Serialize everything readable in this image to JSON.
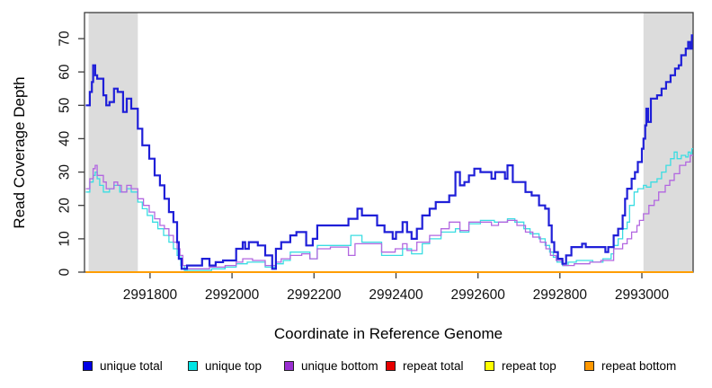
{
  "figure": {
    "background": "#ffffff",
    "band_color": "#dcdcdc",
    "axis_color": "#3d3d3d",
    "tick_label_color": "#111111"
  },
  "chart_data": {
    "type": "line",
    "subtype": "step",
    "title": "",
    "xlabel": "Coordinate in Reference Genome",
    "ylabel": "Read Coverage Depth",
    "x_range": [
      2991640,
      2993125
    ],
    "y_range": [
      0,
      77.8
    ],
    "x_ticks": [
      2991800,
      2992000,
      2992200,
      2992400,
      2992600,
      2992800,
      2993000
    ],
    "y_ticks": [
      0,
      10,
      20,
      30,
      40,
      50,
      60,
      70
    ],
    "grid": false,
    "legend_position": "bottom",
    "shaded_regions": [
      {
        "x0": 2991650,
        "x1": 2991770,
        "color": "#dcdcdc"
      },
      {
        "x0": 2993004,
        "x1": 2993125,
        "color": "#dcdcdc"
      }
    ],
    "draw_order": [
      3,
      4,
      5,
      1,
      2,
      0
    ],
    "series": [
      {
        "name": "unique total",
        "color": "#1f1fd8",
        "legend_color": "#0000e6",
        "width": 2.2,
        "points": [
          [
            2991643,
            50
          ],
          [
            2991653,
            54
          ],
          [
            2991658,
            57
          ],
          [
            2991661,
            62
          ],
          [
            2991666,
            59
          ],
          [
            2991671,
            58
          ],
          [
            2991686,
            53
          ],
          [
            2991693,
            50
          ],
          [
            2991701,
            51
          ],
          [
            2991712,
            55
          ],
          [
            2991721,
            54
          ],
          [
            2991734,
            48
          ],
          [
            2991743,
            52
          ],
          [
            2991754,
            49
          ],
          [
            2991770,
            43
          ],
          [
            2991781,
            38
          ],
          [
            2991798,
            34
          ],
          [
            2991811,
            29
          ],
          [
            2991824,
            26
          ],
          [
            2991835,
            22
          ],
          [
            2991846,
            18
          ],
          [
            2991857,
            15
          ],
          [
            2991866,
            9
          ],
          [
            2991870,
            4
          ],
          [
            2991877,
            1
          ],
          [
            2991890,
            2
          ],
          [
            2991927,
            4
          ],
          [
            2991945,
            2
          ],
          [
            2991960,
            3
          ],
          [
            2991978,
            3.5
          ],
          [
            2992010,
            7
          ],
          [
            2992026,
            9
          ],
          [
            2992032,
            7
          ],
          [
            2992041,
            9
          ],
          [
            2992063,
            8
          ],
          [
            2992081,
            5
          ],
          [
            2992098,
            1
          ],
          [
            2992107,
            7
          ],
          [
            2992120,
            9
          ],
          [
            2992142,
            11
          ],
          [
            2992157,
            12
          ],
          [
            2992181,
            8
          ],
          [
            2992197,
            10
          ],
          [
            2992208,
            14
          ],
          [
            2992284,
            16
          ],
          [
            2992306,
            19
          ],
          [
            2992317,
            17
          ],
          [
            2992354,
            14
          ],
          [
            2992372,
            12
          ],
          [
            2992392,
            10
          ],
          [
            2992400,
            12
          ],
          [
            2992416,
            15
          ],
          [
            2992427,
            12
          ],
          [
            2992438,
            10
          ],
          [
            2992451,
            13
          ],
          [
            2992464,
            17
          ],
          [
            2992482,
            19
          ],
          [
            2992497,
            21
          ],
          [
            2992530,
            23
          ],
          [
            2992545,
            30
          ],
          [
            2992556,
            26
          ],
          [
            2992567,
            27
          ],
          [
            2992578,
            29
          ],
          [
            2992591,
            31
          ],
          [
            2992606,
            30
          ],
          [
            2992633,
            28
          ],
          [
            2992642,
            30
          ],
          [
            2992666,
            28
          ],
          [
            2992672,
            32
          ],
          [
            2992685,
            27
          ],
          [
            2992716,
            24
          ],
          [
            2992731,
            23
          ],
          [
            2992749,
            20
          ],
          [
            2992764,
            19
          ],
          [
            2992773,
            14
          ],
          [
            2992780,
            9
          ],
          [
            2992786,
            6
          ],
          [
            2992795,
            4
          ],
          [
            2992806,
            2.5
          ],
          [
            2992815,
            5
          ],
          [
            2992828,
            7.5
          ],
          [
            2992854,
            8.5
          ],
          [
            2992863,
            7.5
          ],
          [
            2992911,
            6
          ],
          [
            2992918,
            7.5
          ],
          [
            2992931,
            11
          ],
          [
            2992942,
            13
          ],
          [
            2992953,
            17
          ],
          [
            2992959,
            22
          ],
          [
            2992964,
            25
          ],
          [
            2992975,
            28
          ],
          [
            2992983,
            30
          ],
          [
            2992990,
            33
          ],
          [
            2993000,
            37
          ],
          [
            2993004,
            40
          ],
          [
            2993008,
            44
          ],
          [
            2993011,
            49
          ],
          [
            2993015,
            45
          ],
          [
            2993022,
            52
          ],
          [
            2993037,
            53
          ],
          [
            2993048,
            55
          ],
          [
            2993059,
            57
          ],
          [
            2993070,
            59
          ],
          [
            2993081,
            61
          ],
          [
            2993090,
            62
          ],
          [
            2993096,
            65
          ],
          [
            2993107,
            67
          ],
          [
            2993113,
            69
          ],
          [
            2993118,
            67
          ],
          [
            2993122,
            71
          ]
        ]
      },
      {
        "name": "unique top",
        "color": "#3adde2",
        "legend_color": "#00e5e5",
        "width": 1.3,
        "points": [
          [
            2991643,
            24
          ],
          [
            2991653,
            27
          ],
          [
            2991661,
            29
          ],
          [
            2991666,
            30
          ],
          [
            2991671,
            28
          ],
          [
            2991677,
            26
          ],
          [
            2991686,
            24
          ],
          [
            2991701,
            25
          ],
          [
            2991712,
            26
          ],
          [
            2991726,
            24
          ],
          [
            2991743,
            25
          ],
          [
            2991754,
            24
          ],
          [
            2991770,
            21
          ],
          [
            2991781,
            19
          ],
          [
            2991793,
            17
          ],
          [
            2991806,
            15
          ],
          [
            2991819,
            13
          ],
          [
            2991833,
            11
          ],
          [
            2991846,
            9
          ],
          [
            2991857,
            7
          ],
          [
            2991866,
            5
          ],
          [
            2991875,
            2
          ],
          [
            2991884,
            0.5
          ],
          [
            2991950,
            1
          ],
          [
            2991983,
            1.5
          ],
          [
            2992010,
            2.5
          ],
          [
            2992037,
            3
          ],
          [
            2992081,
            1.5
          ],
          [
            2992107,
            2.5
          ],
          [
            2992125,
            3.5
          ],
          [
            2992142,
            6
          ],
          [
            2992190,
            4
          ],
          [
            2992208,
            8
          ],
          [
            2992290,
            11
          ],
          [
            2992317,
            9
          ],
          [
            2992365,
            5
          ],
          [
            2992416,
            7
          ],
          [
            2992438,
            5.5
          ],
          [
            2992464,
            8.5
          ],
          [
            2992482,
            10
          ],
          [
            2992510,
            12
          ],
          [
            2992545,
            13
          ],
          [
            2992556,
            12
          ],
          [
            2992578,
            14.5
          ],
          [
            2992606,
            15.5
          ],
          [
            2992640,
            15
          ],
          [
            2992672,
            16
          ],
          [
            2992690,
            15
          ],
          [
            2992712,
            13
          ],
          [
            2992727,
            11.5
          ],
          [
            2992749,
            10
          ],
          [
            2992764,
            8
          ],
          [
            2992775,
            6
          ],
          [
            2992784,
            4.5
          ],
          [
            2992793,
            3
          ],
          [
            2992806,
            2
          ],
          [
            2992820,
            3
          ],
          [
            2992840,
            3.5
          ],
          [
            2992880,
            3
          ],
          [
            2992905,
            4
          ],
          [
            2992925,
            5.5
          ],
          [
            2992931,
            8
          ],
          [
            2992942,
            10
          ],
          [
            2992953,
            13
          ],
          [
            2992964,
            15
          ],
          [
            2992970,
            20
          ],
          [
            2992981,
            24
          ],
          [
            2992990,
            25
          ],
          [
            2993004,
            26
          ],
          [
            2993011,
            25.5
          ],
          [
            2993022,
            27
          ],
          [
            2993037,
            28
          ],
          [
            2993048,
            30
          ],
          [
            2993059,
            32
          ],
          [
            2993070,
            34
          ],
          [
            2993079,
            36
          ],
          [
            2993086,
            34
          ],
          [
            2993096,
            35
          ],
          [
            2993107,
            34.5
          ],
          [
            2993113,
            36
          ],
          [
            2993118,
            35.5
          ],
          [
            2993122,
            37
          ]
        ]
      },
      {
        "name": "unique bottom",
        "color": "#b266e0",
        "legend_color": "#9a2fd1",
        "width": 1.3,
        "points": [
          [
            2991643,
            25
          ],
          [
            2991653,
            28
          ],
          [
            2991661,
            31
          ],
          [
            2991666,
            32
          ],
          [
            2991671,
            29
          ],
          [
            2991686,
            27
          ],
          [
            2991693,
            25
          ],
          [
            2991712,
            27
          ],
          [
            2991721,
            26
          ],
          [
            2991730,
            24
          ],
          [
            2991743,
            26
          ],
          [
            2991754,
            25
          ],
          [
            2991770,
            22
          ],
          [
            2991784,
            20
          ],
          [
            2991798,
            18
          ],
          [
            2991811,
            16
          ],
          [
            2991824,
            14
          ],
          [
            2991835,
            13
          ],
          [
            2991846,
            11
          ],
          [
            2991857,
            9
          ],
          [
            2991866,
            7
          ],
          [
            2991873,
            5
          ],
          [
            2991880,
            2
          ],
          [
            2991890,
            1
          ],
          [
            2991945,
            1.5
          ],
          [
            2991983,
            2
          ],
          [
            2992010,
            3
          ],
          [
            2992026,
            4
          ],
          [
            2992050,
            3.5
          ],
          [
            2992081,
            2
          ],
          [
            2992107,
            3
          ],
          [
            2992120,
            4
          ],
          [
            2992142,
            5
          ],
          [
            2992170,
            5.5
          ],
          [
            2992190,
            4
          ],
          [
            2992208,
            7
          ],
          [
            2992240,
            7.5
          ],
          [
            2992284,
            5
          ],
          [
            2992300,
            8.5
          ],
          [
            2992317,
            8.5
          ],
          [
            2992365,
            6
          ],
          [
            2992398,
            7
          ],
          [
            2992416,
            8.5
          ],
          [
            2992427,
            6.5
          ],
          [
            2992451,
            9
          ],
          [
            2992482,
            11
          ],
          [
            2992510,
            13
          ],
          [
            2992530,
            15
          ],
          [
            2992556,
            12.5
          ],
          [
            2992578,
            15
          ],
          [
            2992633,
            14
          ],
          [
            2992650,
            15
          ],
          [
            2992672,
            15.5
          ],
          [
            2992695,
            14
          ],
          [
            2992716,
            12
          ],
          [
            2992734,
            10.5
          ],
          [
            2992752,
            9
          ],
          [
            2992766,
            7
          ],
          [
            2992777,
            5
          ],
          [
            2992791,
            3.5
          ],
          [
            2992808,
            2
          ],
          [
            2992835,
            2.5
          ],
          [
            2992873,
            3
          ],
          [
            2992900,
            3.5
          ],
          [
            2992931,
            7
          ],
          [
            2992953,
            8.5
          ],
          [
            2992964,
            10
          ],
          [
            2992975,
            12
          ],
          [
            2992988,
            14
          ],
          [
            2992994,
            15.5
          ],
          [
            2993004,
            17.5
          ],
          [
            2993017,
            20
          ],
          [
            2993030,
            21.5
          ],
          [
            2993041,
            24
          ],
          [
            2993057,
            26
          ],
          [
            2993068,
            27.5
          ],
          [
            2993079,
            29.5
          ],
          [
            2993092,
            32
          ],
          [
            2993107,
            33
          ],
          [
            2993118,
            35
          ]
        ]
      },
      {
        "name": "repeat total",
        "color": "#e60000",
        "legend_color": "#e60000",
        "width": 1.3,
        "points": [
          [
            2991643,
            0
          ]
        ]
      },
      {
        "name": "repeat top",
        "color": "#ffff00",
        "legend_color": "#ffff00",
        "width": 1.3,
        "points": [
          [
            2991643,
            0
          ]
        ]
      },
      {
        "name": "repeat bottom",
        "color": "#ff9e00",
        "legend_color": "#ff9800",
        "width": 2,
        "points": [
          [
            2991643,
            0
          ]
        ]
      }
    ]
  }
}
